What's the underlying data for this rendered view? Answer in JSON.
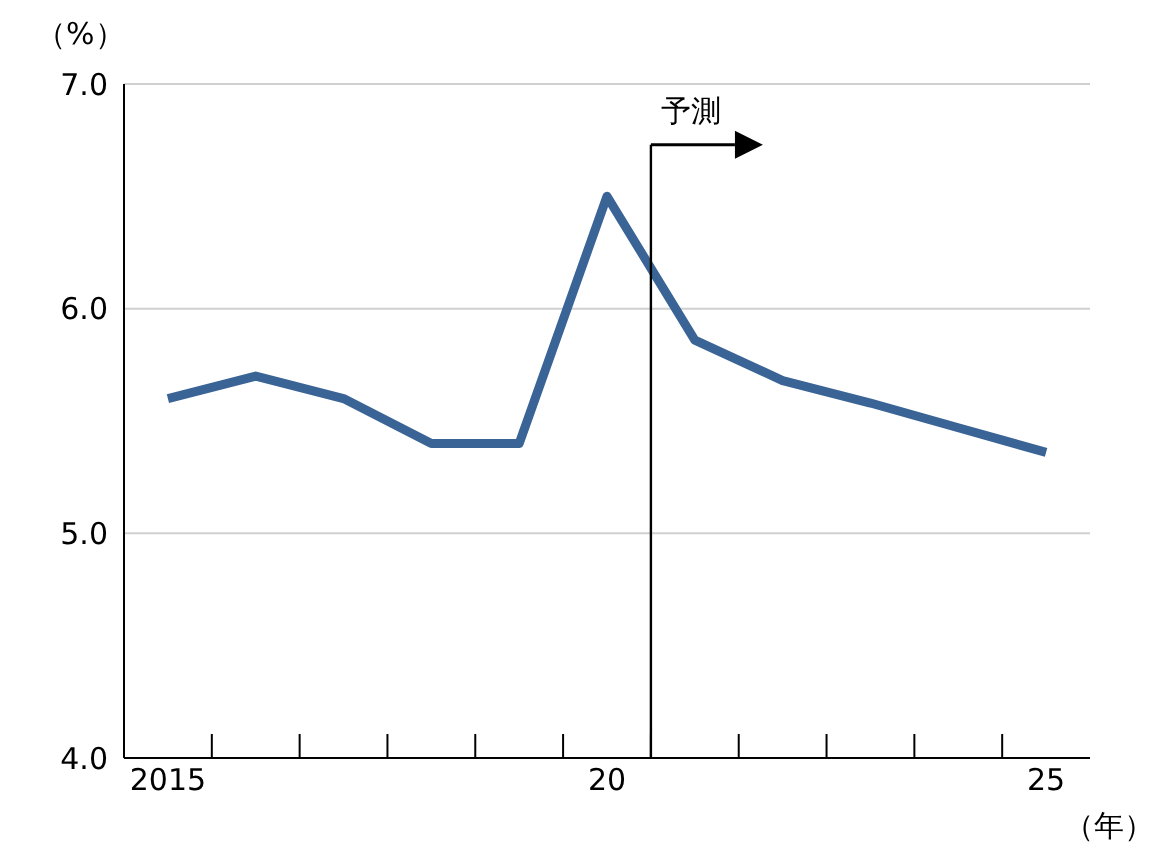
{
  "chart_data": {
    "type": "line",
    "ylabel": "（%）",
    "xlabel": "（年）",
    "x": [
      2015,
      2016,
      2017,
      2018,
      2019,
      2020,
      2021,
      2022,
      2023,
      2024,
      2025
    ],
    "series": [
      {
        "color": "#3b6496",
        "values": [
          5.6,
          5.7,
          5.6,
          5.4,
          5.4,
          6.5,
          5.86,
          5.68,
          5.58,
          5.47,
          5.36
        ]
      }
    ],
    "xlim": [
      2014.5,
      2025.5
    ],
    "xticks": [
      {
        "value": 2015,
        "label": "2015"
      },
      {
        "value": 2020,
        "label": "20"
      },
      {
        "value": 2025,
        "label": "25"
      },
      {
        "value": 2015.5,
        "label": null
      },
      {
        "value": 2016.5,
        "label": null
      },
      {
        "value": 2017.5,
        "label": null
      },
      {
        "value": 2018.5,
        "label": null
      },
      {
        "value": 2019.5,
        "label": null
      },
      {
        "value": 2020.5,
        "label": null
      },
      {
        "value": 2021.5,
        "label": null
      },
      {
        "value": 2022.5,
        "label": null
      },
      {
        "value": 2023.5,
        "label": null
      },
      {
        "value": 2024.5,
        "label": null
      }
    ],
    "ylim": [
      4,
      7
    ],
    "yticks": [
      {
        "value": 4,
        "label": "4.0"
      },
      {
        "value": 5,
        "label": "5.0"
      },
      {
        "value": 6,
        "label": "6.0"
      },
      {
        "value": 7,
        "label": "7.0"
      }
    ],
    "grid": "y",
    "marker": "none",
    "line_style": "solid",
    "ref_lines": [
      {
        "axis": "x",
        "value": 2020.5,
        "label": "予測",
        "color": "#000000"
      }
    ]
  }
}
